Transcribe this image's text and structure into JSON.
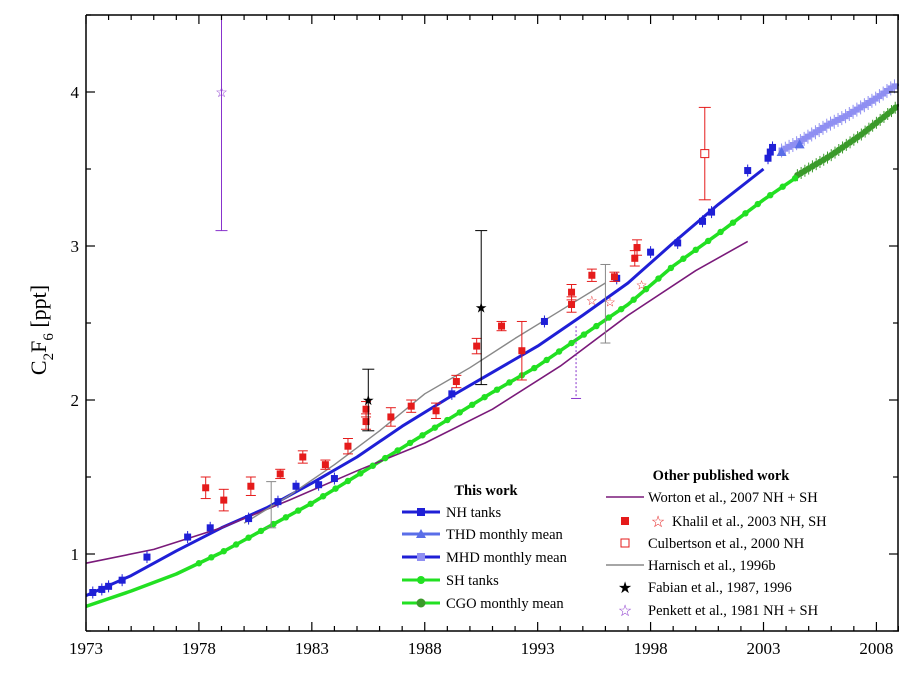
{
  "chart_data": {
    "type": "line",
    "title": "",
    "xlabel": "",
    "ylabel": {
      "main": "C",
      "sub1": "2",
      "mid": "F",
      "sub2": "6",
      "unit": " [ppt]"
    },
    "xlim": [
      1973,
      2009
    ],
    "ylim": [
      0.5,
      4.5
    ],
    "x_ticks": [
      1973,
      1978,
      1983,
      1988,
      1993,
      1998,
      2003,
      2008
    ],
    "y_ticks": [
      1,
      2,
      3,
      4
    ],
    "grid": false,
    "legend": {
      "this_work": {
        "title": "This work",
        "entries": [
          "NH tanks",
          "THD monthly mean",
          "MHD monthly mean",
          "SH tanks",
          "CGO monthly mean"
        ]
      },
      "other": {
        "title": "Other published work",
        "entries": [
          "Worton et al., 2007 NH + SH",
          "Khalil et al., 2003 NH, SH",
          "Culbertson et al., 2000 NH",
          "Harnisch et al., 1996b",
          "Fabian et al., 1987, 1996",
          "Penkett et al., 1981 NH + SH"
        ]
      }
    },
    "colors": {
      "nh": "#1f1fd6",
      "thd": "#5a6ee8",
      "mhd": "#8f8ff2",
      "sh": "#22e022",
      "cgo": "#3a9a2a",
      "worton": "#7a1a7a",
      "khalil": "#e51b1b",
      "harnisch": "#888888",
      "fabian": "#000000",
      "penkett": "#8833cc"
    },
    "series": [
      {
        "name": "NH tanks",
        "kind": "line",
        "x": [
          1973,
          1975,
          1977,
          1979,
          1981,
          1983,
          1985,
          1987,
          1989,
          1991,
          1993,
          1995,
          1997,
          1999,
          2001,
          2003
        ],
        "y": [
          0.73,
          0.86,
          1.02,
          1.17,
          1.3,
          1.46,
          1.63,
          1.83,
          2.01,
          2.18,
          2.35,
          2.55,
          2.76,
          3.02,
          3.27,
          3.5
        ]
      },
      {
        "name": "NH tanks",
        "kind": "points",
        "x": [
          1973.3,
          1973.7,
          1974.0,
          1974.6,
          1975.7,
          1977.5,
          1978.5,
          1980.2,
          1981.5,
          1982.3,
          1983.3,
          1984.0,
          1989.2,
          1993.3,
          1996.5,
          1998.0,
          1999.2,
          2000.3,
          2000.7,
          2002.3,
          2003.2,
          2003.3,
          2003.4
        ],
        "y": [
          0.75,
          0.77,
          0.79,
          0.83,
          0.98,
          1.11,
          1.17,
          1.23,
          1.34,
          1.44,
          1.45,
          1.49,
          2.04,
          2.51,
          2.79,
          2.96,
          3.02,
          3.16,
          3.22,
          3.49,
          3.57,
          3.61,
          3.64
        ]
      },
      {
        "name": "THD monthly mean",
        "kind": "points",
        "x": [
          2003.8,
          2004.6
        ],
        "y": [
          3.61,
          3.66
        ]
      },
      {
        "name": "MHD monthly mean",
        "kind": "line",
        "x": [
          2003.8,
          2004.5,
          2005.2,
          2005.9,
          2006.6,
          2007.3,
          2008.0,
          2008.7,
          2009.0
        ],
        "y": [
          3.62,
          3.67,
          3.73,
          3.79,
          3.84,
          3.9,
          3.96,
          4.03,
          4.05
        ]
      },
      {
        "name": "SH tanks",
        "kind": "line",
        "x": [
          1973,
          1975,
          1977,
          1979,
          1981,
          1983,
          1985,
          1987,
          1989,
          1991,
          1993,
          1995,
          1997,
          1999,
          2001,
          2003,
          2005
        ],
        "y": [
          0.66,
          0.76,
          0.87,
          1.01,
          1.17,
          1.33,
          1.51,
          1.69,
          1.87,
          2.05,
          2.22,
          2.42,
          2.62,
          2.87,
          3.08,
          3.3,
          3.5
        ]
      },
      {
        "name": "CGO monthly mean",
        "kind": "line",
        "x": [
          2004.5,
          2005.2,
          2005.9,
          2006.6,
          2007.3,
          2008.0,
          2008.7,
          2009.0
        ],
        "y": [
          3.46,
          3.52,
          3.58,
          3.65,
          3.72,
          3.8,
          3.88,
          3.92
        ]
      },
      {
        "name": "Worton et al., 2007 NH + SH",
        "kind": "line",
        "x": [
          1973,
          1976,
          1979,
          1982,
          1985,
          1988,
          1991,
          1994,
          1997,
          2000,
          2002.3
        ],
        "y": [
          0.94,
          1.03,
          1.17,
          1.35,
          1.54,
          1.72,
          1.94,
          2.22,
          2.55,
          2.84,
          3.03
        ]
      },
      {
        "name": "Harnisch et al., 1996b",
        "kind": "line",
        "x": [
          1980,
          1982,
          1984,
          1986,
          1988,
          1990,
          1992,
          1994,
          1996
        ],
        "y": [
          1.2,
          1.38,
          1.58,
          1.8,
          2.04,
          2.21,
          2.4,
          2.58,
          2.76
        ]
      }
    ],
    "points": {
      "khalil_nh": {
        "x": [
          1978.3,
          1979.1,
          1980.3,
          1981.6,
          1982.6,
          1983.6,
          1984.6,
          1985.4,
          1985.4,
          1986.5,
          1987.4,
          1988.5,
          1989.4,
          1990.3,
          1991.4,
          1992.3,
          1994.5,
          1994.5,
          1995.4,
          1996.4,
          1997.3,
          1997.4
        ],
        "y": [
          1.43,
          1.35,
          1.44,
          1.52,
          1.63,
          1.58,
          1.7,
          1.86,
          1.94,
          1.89,
          1.96,
          1.93,
          2.12,
          2.35,
          2.48,
          2.32,
          2.62,
          2.7,
          2.81,
          2.8,
          2.92,
          2.99
        ],
        "err": [
          0.07,
          0.07,
          0.06,
          0.03,
          0.04,
          0.03,
          0.05,
          0.05,
          0.05,
          0.06,
          0.04,
          0.05,
          0.04,
          0.05,
          0.03,
          0.19,
          0.05,
          0.05,
          0.04,
          0.03,
          0.05,
          0.05
        ]
      },
      "khalil_sh": {
        "x": [
          1995.4,
          1996.2,
          1997.6
        ],
        "y": [
          2.65,
          2.64,
          2.75
        ]
      },
      "culbertson": {
        "x": [
          2000.4
        ],
        "y": [
          3.6
        ],
        "err": [
          0.3
        ]
      },
      "fabian": {
        "x": [
          1985.5,
          1990.5
        ],
        "y": [
          2.0,
          2.6
        ],
        "err": [
          0.2,
          0.5
        ]
      },
      "penkett": {
        "x": [
          1979.0
        ],
        "y": [
          4.0
        ],
        "lo": 3.1,
        "hi": 4.6
      },
      "harnisch_err": {
        "x": [
          1981.2,
          1996.0
        ],
        "lo": [
          1.17,
          2.37
        ],
        "hi": [
          1.47,
          2.88
        ]
      },
      "dotted_bar": {
        "x": [
          1994.7
        ],
        "lo": [
          2.01
        ],
        "hi": [
          2.48
        ]
      }
    }
  }
}
